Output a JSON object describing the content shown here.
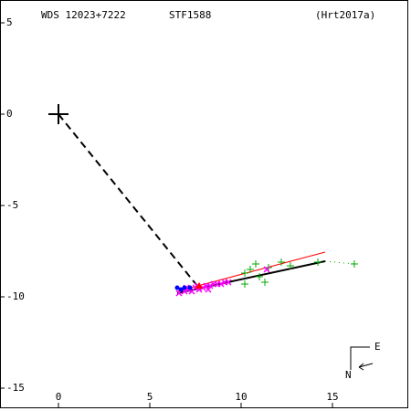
{
  "chart_data": {
    "type": "scatter",
    "labels": [
      "WDS 12023+7222",
      "STF1588",
      "(Hrt2017a)"
    ],
    "xlim": [
      -3.2,
      19.3
    ],
    "ylim": [
      -16.25,
      6.25
    ],
    "xticks": [
      0,
      5,
      10,
      15
    ],
    "yticks": [
      5,
      0,
      -5,
      -10,
      -15
    ],
    "primary": {
      "x": 0,
      "y": 0
    },
    "lines": [
      {
        "color": "#000000",
        "style": "dashed",
        "x": [
          0,
          7.6
        ],
        "values": [
          0,
          -9.4
        ]
      },
      {
        "color": "#ff0000",
        "style": "solid",
        "x": [
          6.5,
          14.6
        ],
        "values": [
          -9.7,
          -7.55
        ]
      },
      {
        "color": "#000000",
        "style": "solid",
        "x": [
          6.5,
          14.6
        ],
        "values": [
          -9.8,
          -8.05
        ]
      },
      {
        "color": "#00aa00",
        "style": "dotted",
        "x": [
          14.6,
          16.2
        ],
        "values": [
          -8.05,
          -8.2
        ]
      }
    ],
    "series": [
      {
        "color": "#00aa00",
        "marker": "plus",
        "x": [
          10.2,
          10.2,
          10.5,
          10.8,
          11.0,
          11.3,
          11.5,
          12.2,
          12.7,
          14.2,
          16.2
        ],
        "values": [
          -9.3,
          -8.7,
          -8.5,
          -8.2,
          -8.9,
          -9.2,
          -8.4,
          -8.1,
          -8.3,
          -8.1,
          -8.2
        ]
      },
      {
        "color": "#ff00ff",
        "marker": "cross",
        "x": [
          6.6,
          6.9,
          7.1,
          7.3,
          7.5,
          7.7,
          7.9,
          8.1,
          8.3,
          8.5,
          8.7,
          8.9,
          9.1,
          9.3,
          7.0,
          7.6,
          8.2,
          11.4
        ],
        "values": [
          -9.8,
          -9.7,
          -9.6,
          -9.7,
          -9.5,
          -9.6,
          -9.5,
          -9.4,
          -9.4,
          -9.3,
          -9.3,
          -9.3,
          -9.2,
          -9.2,
          -9.5,
          -9.4,
          -9.6,
          -8.5
        ]
      },
      {
        "color": "#0000ff",
        "marker": "dot",
        "x": [
          6.5,
          6.7,
          6.9,
          7.2
        ],
        "values": [
          -9.5,
          -9.6,
          -9.5,
          -9.5
        ]
      },
      {
        "color": "#ff0000",
        "marker": "triangle",
        "x": [
          7.7
        ],
        "values": [
          -9.4
        ]
      }
    ],
    "compass": [
      "E",
      "N"
    ]
  }
}
